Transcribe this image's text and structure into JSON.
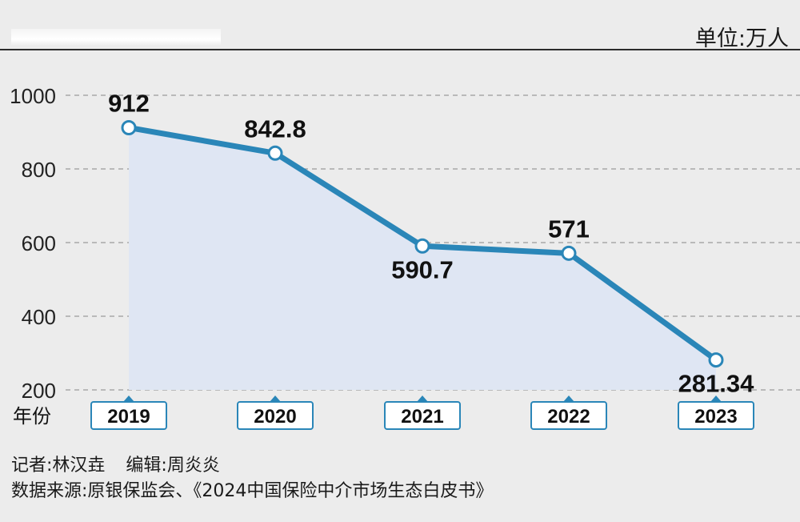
{
  "header": {
    "unit": "单位:万人"
  },
  "chart_data": {
    "type": "area",
    "categories": [
      "2019",
      "2020",
      "2021",
      "2022",
      "2023"
    ],
    "values": [
      912,
      842.8,
      590.7,
      571,
      281.34
    ],
    "value_labels": [
      "912",
      "842.8",
      "590.7",
      "571",
      "281.34"
    ],
    "ylim": [
      200,
      1000
    ],
    "yticks": [
      200,
      400,
      600,
      800,
      1000
    ],
    "xlabel": "年份",
    "grid": true,
    "colors": {
      "line": "#2a86b8",
      "fill": "#dfe6f3",
      "marker_fill": "#ffffff",
      "tag_border": "#2a86b8"
    }
  },
  "footer": {
    "reporter": "记者:林汉垚",
    "editor": "编辑:周炎炎",
    "source": "数据来源:原银保监会、《2024中国保险中介市场生态白皮书》"
  }
}
